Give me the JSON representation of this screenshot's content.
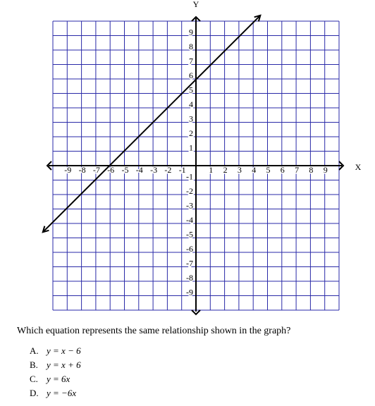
{
  "chart_data": {
    "type": "line",
    "xlabel": "X",
    "ylabel": "Y",
    "x": [
      -10.7,
      4.5
    ],
    "series": [
      {
        "color": "#000000",
        "values": [
          -4.6,
          10.4
        ]
      }
    ],
    "xlim": [
      -10,
      10
    ],
    "ylim": [
      -10,
      10
    ],
    "xticks": [
      -9,
      -8,
      -7,
      -6,
      -5,
      -4,
      -3,
      -2,
      -1,
      1,
      2,
      3,
      4,
      5,
      6,
      7,
      8,
      9
    ],
    "yticks": [
      -9,
      -8,
      -7,
      -6,
      -5,
      -4,
      -3,
      -2,
      -1,
      1,
      2,
      3,
      4,
      5,
      6,
      7,
      8,
      9
    ],
    "grid": true,
    "grid_color": "#2a2aa8"
  },
  "question": {
    "text": "Which equation represents the same relationship shown in the graph?",
    "options": [
      {
        "letter": "A.",
        "text": "y = x − 6"
      },
      {
        "letter": "B.",
        "text": "y = x + 6"
      },
      {
        "letter": "C.",
        "text": "y = 6x"
      },
      {
        "letter": "D.",
        "text": "y = −6x"
      }
    ]
  }
}
